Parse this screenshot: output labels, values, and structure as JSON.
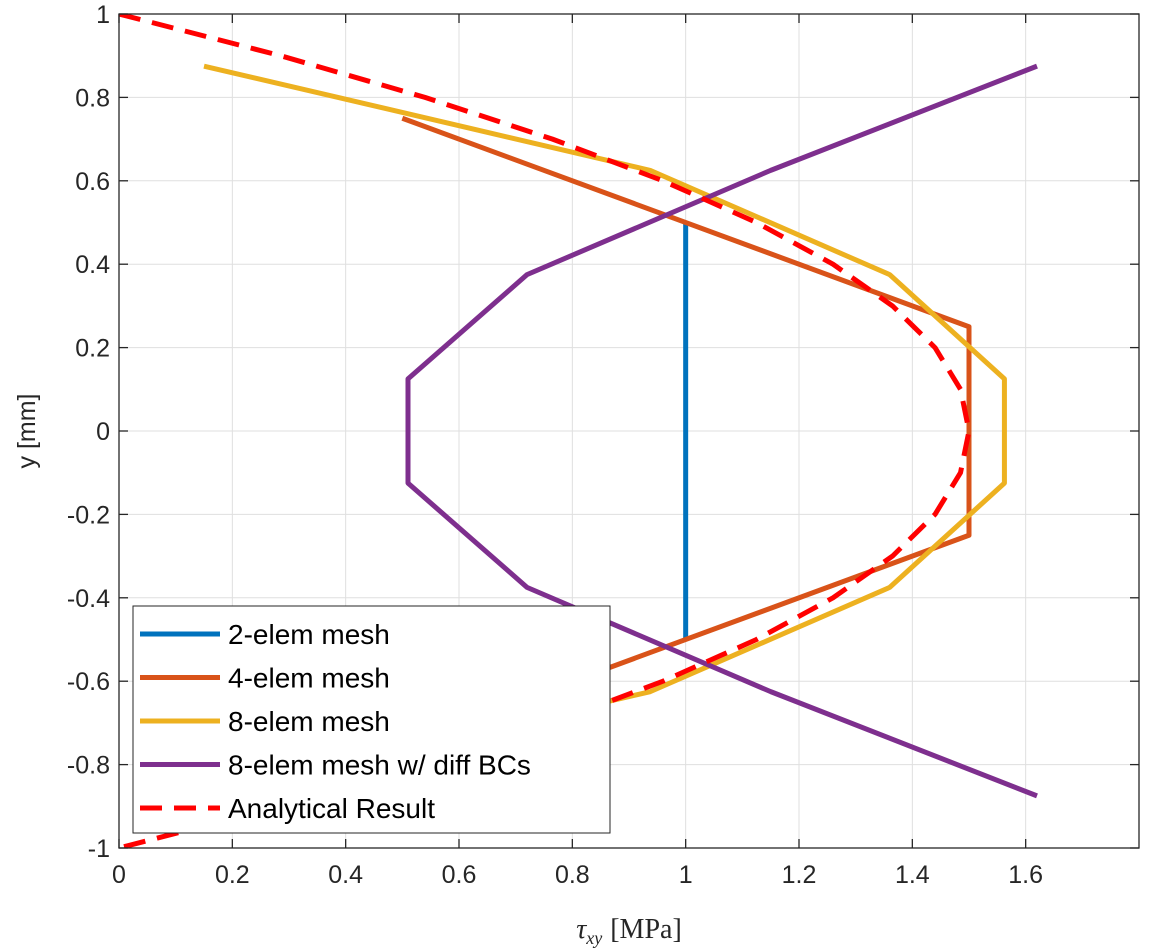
{
  "chart_data": {
    "type": "line",
    "xlabel_symbol": "τ",
    "xlabel_sub": "xy",
    "xlabel_unit": "[MPa]",
    "ylabel": "y [mm]",
    "xlim": [
      0,
      1.8
    ],
    "ylim": [
      -1,
      1
    ],
    "xticks": [
      0,
      0.2,
      0.4,
      0.6,
      0.8,
      1,
      1.2,
      1.4,
      1.6
    ],
    "xtick_labels": [
      "0",
      "0.2",
      "0.4",
      "0.6",
      "0.8",
      "1",
      "1.2",
      "1.4",
      "1.6"
    ],
    "yticks": [
      -1,
      -0.8,
      -0.6,
      -0.4,
      -0.2,
      0,
      0.2,
      0.4,
      0.6,
      0.8,
      1
    ],
    "ytick_labels": [
      "-1",
      "-0.8",
      "-0.6",
      "-0.4",
      "-0.2",
      "0",
      "0.2",
      "0.4",
      "0.6",
      "0.8",
      "1"
    ],
    "grid": true,
    "legend_position": "bottom-left",
    "series": [
      {
        "name": "2-elem mesh",
        "color": "#0072BD",
        "dashed": false,
        "x": [
          1,
          1
        ],
        "y": [
          -0.5,
          0.5
        ]
      },
      {
        "name": "4-elem mesh",
        "color": "#D95319",
        "dashed": false,
        "x": [
          0.5,
          1.5,
          1.5,
          0.5
        ],
        "y": [
          0.75,
          0.25,
          -0.25,
          -0.75
        ]
      },
      {
        "name": "8-elem mesh",
        "color": "#EDB120",
        "dashed": false,
        "x": [
          0.15,
          0.9375,
          1.36,
          1.5625,
          1.5625,
          1.36,
          0.9375,
          0.15
        ],
        "y": [
          0.875,
          0.625,
          0.375,
          0.125,
          -0.125,
          -0.375,
          -0.625,
          -0.875
        ]
      },
      {
        "name": "8-elem mesh w/ diff BCs",
        "color": "#7E2F8E",
        "dashed": false,
        "x": [
          1.62,
          1.15,
          0.72,
          0.51,
          0.51,
          0.72,
          1.15,
          1.62
        ],
        "y": [
          0.875,
          0.625,
          0.375,
          0.125,
          -0.125,
          -0.375,
          -0.625,
          -0.875
        ]
      },
      {
        "name": "Analytical Result",
        "color": "#FF0000",
        "dashed": true,
        "x": [
          0,
          0.285,
          0.54,
          0.765,
          0.96,
          1.125,
          1.26,
          1.365,
          1.44,
          1.485,
          1.5,
          1.485,
          1.44,
          1.365,
          1.26,
          1.125,
          0.96,
          0.765,
          0.54,
          0.285,
          0
        ],
        "y": [
          1,
          0.9,
          0.8,
          0.7,
          0.6,
          0.5,
          0.4,
          0.3,
          0.2,
          0.1,
          0,
          -0.1,
          -0.2,
          -0.3,
          -0.4,
          -0.5,
          -0.6,
          -0.7,
          -0.8,
          -0.9,
          -1
        ]
      }
    ]
  }
}
